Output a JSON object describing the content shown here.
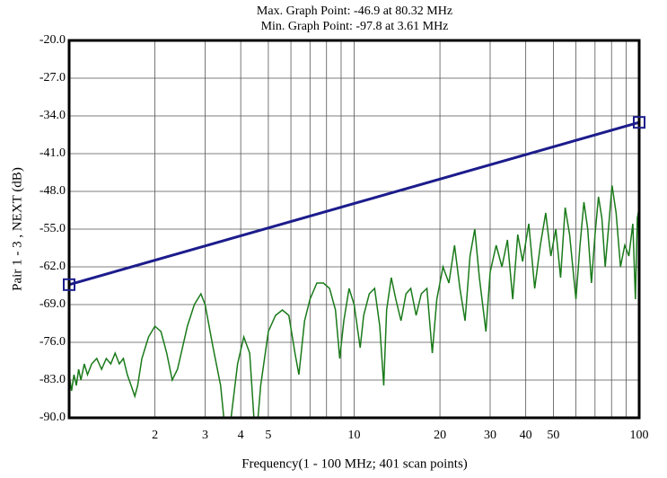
{
  "chart_data": {
    "type": "line",
    "title": "Max. Graph Point: -46.9 at 80.32 MHz",
    "subtitle": "Min. Graph Point: -97.8 at 3.61 MHz",
    "x_label": "Frequency(1 - 100 MHz; 401 scan points)",
    "y_label": "Pair 1 - 3 , NEXT (dB)",
    "x_scale": "log",
    "xlim": [
      1,
      100
    ],
    "ylim": [
      -90,
      -20
    ],
    "xticks": [
      2,
      3,
      4,
      5,
      10,
      20,
      30,
      40,
      50,
      100
    ],
    "xgrid": [
      1,
      2,
      3,
      4,
      5,
      6,
      7,
      8,
      9,
      10,
      20,
      30,
      40,
      50,
      60,
      70,
      80,
      90,
      100
    ],
    "yticks": [
      {
        "value": -90,
        "label": "-90.0"
      },
      {
        "value": -83,
        "label": "-83.0"
      },
      {
        "value": -76,
        "label": "-76.0"
      },
      {
        "value": -69,
        "label": "-69.0"
      },
      {
        "value": -62,
        "label": "-62.0"
      },
      {
        "value": -55,
        "label": "-55.0"
      },
      {
        "value": -48,
        "label": "-48.0"
      },
      {
        "value": -41,
        "label": "-41.0"
      },
      {
        "value": -34,
        "label": "-34.0"
      },
      {
        "value": -27,
        "label": "-27.0"
      },
      {
        "value": -20,
        "label": "-20.0"
      }
    ],
    "grid": true,
    "series": [
      {
        "color": "#1c1c8c",
        "markers": true,
        "x": [
          1,
          100
        ],
        "values": [
          -65.3,
          -35.2
        ]
      },
      {
        "color": "#1a7a1a",
        "markers": false,
        "x": [
          1.0,
          1.02,
          1.04,
          1.06,
          1.08,
          1.1,
          1.13,
          1.16,
          1.2,
          1.25,
          1.3,
          1.35,
          1.4,
          1.45,
          1.5,
          1.55,
          1.6,
          1.65,
          1.7,
          1.74,
          1.8,
          1.9,
          2.0,
          2.1,
          2.2,
          2.3,
          2.4,
          2.6,
          2.75,
          2.9,
          3.0,
          3.2,
          3.4,
          3.61,
          3.7,
          3.9,
          4.1,
          4.3,
          4.45,
          4.55,
          4.7,
          5.0,
          5.3,
          5.6,
          5.9,
          6.2,
          6.4,
          6.7,
          7.0,
          7.4,
          7.8,
          8.2,
          8.6,
          8.9,
          9.2,
          9.6,
          10.0,
          10.5,
          10.8,
          11.3,
          11.8,
          12.3,
          12.7,
          13.0,
          13.5,
          14.0,
          14.6,
          15.2,
          15.8,
          16.5,
          17.2,
          18.0,
          18.8,
          19.5,
          20.5,
          21.5,
          22.5,
          23.5,
          24.5,
          25.5,
          26.5,
          27.5,
          29,
          30,
          31.5,
          33,
          34.5,
          36,
          37.5,
          39,
          41,
          43,
          45,
          47,
          49,
          51,
          53,
          55,
          57,
          60,
          62,
          64,
          66,
          68,
          70,
          72,
          74,
          76,
          78,
          80.32,
          83,
          86,
          89,
          92,
          95,
          97,
          98.5,
          100
        ],
        "values": [
          -82,
          -85,
          -82,
          -84,
          -81,
          -83,
          -80,
          -82,
          -80,
          -79,
          -81,
          -79,
          -80,
          -78,
          -80,
          -79,
          -82,
          -84,
          -86,
          -84,
          -79,
          -75,
          -73,
          -74,
          -78,
          -83,
          -81,
          -73,
          -69,
          -67,
          -69,
          -77,
          -84,
          -97.8,
          -90,
          -80,
          -75,
          -78,
          -90,
          -93,
          -84,
          -74,
          -71,
          -70,
          -71,
          -78,
          -82,
          -72,
          -68,
          -65,
          -65,
          -66,
          -70,
          -79,
          -72,
          -66,
          -69,
          -77,
          -71,
          -67,
          -66,
          -73,
          -84,
          -70,
          -64,
          -68,
          -72,
          -67,
          -66,
          -71,
          -67,
          -66,
          -78,
          -68,
          -62,
          -65,
          -58,
          -66,
          -72,
          -60,
          -55,
          -64,
          -74,
          -63,
          -58,
          -62,
          -57,
          -68,
          -56,
          -61,
          -54,
          -66,
          -58,
          -52,
          -60,
          -55,
          -64,
          -51,
          -56,
          -68,
          -58,
          -50,
          -55,
          -65,
          -56,
          -49,
          -53,
          -62,
          -55,
          -46.9,
          -52,
          -62,
          -58,
          -60,
          -54,
          -68,
          -53,
          -51
        ]
      }
    ]
  }
}
